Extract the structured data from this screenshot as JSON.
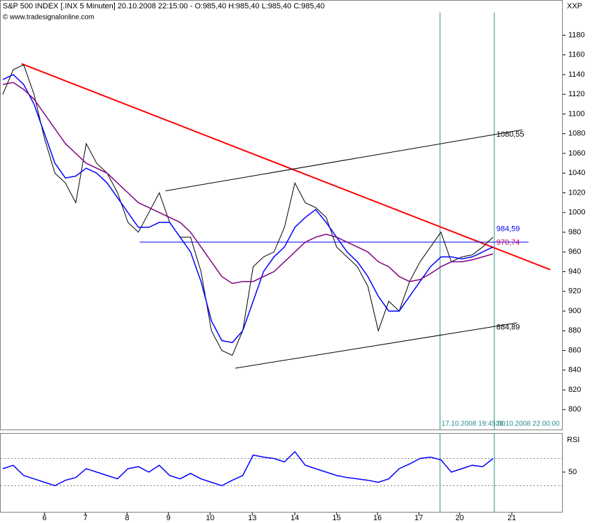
{
  "chart_data": [
    {
      "type": "line",
      "title": "S&P 500 INDEX [.INX  5 Minuten] 20.10.2008 22:15:00 - O:985,40 H:985,40 L:985,40 C:985,40",
      "subtitle": "© www.tradesignalonline.com",
      "y_label": "XXP",
      "x": [
        0,
        0.25,
        0.5,
        0.75,
        1,
        1.25,
        1.5,
        1.75,
        2,
        2.25,
        2.5,
        2.75,
        3,
        3.25,
        3.5,
        3.75,
        4,
        4.25,
        4.5,
        4.75,
        5,
        5.25,
        5.5,
        5.75,
        6,
        6.25,
        6.5,
        6.75,
        7,
        7.25,
        7.5,
        7.75,
        8,
        8.25,
        8.5,
        8.75,
        9,
        9.25,
        9.5,
        9.75,
        10,
        10.25,
        10.5,
        10.75,
        11,
        11.25,
        11.5,
        11.75
      ],
      "series": [
        {
          "color": "#000000",
          "values": [
            1120,
            1145,
            1150,
            1120,
            1075,
            1040,
            1030,
            1010,
            1070,
            1050,
            1040,
            1020,
            990,
            980,
            1000,
            1020,
            990,
            975,
            975,
            940,
            880,
            860,
            855,
            880,
            945,
            955,
            960,
            985,
            1030,
            1010,
            1005,
            995,
            965,
            955,
            945,
            925,
            880,
            910,
            900,
            930,
            950,
            965,
            980,
            950,
            955,
            957,
            965,
            975
          ]
        },
        {
          "color": "#0000ff",
          "values": [
            1135,
            1140,
            1130,
            1110,
            1080,
            1050,
            1035,
            1037,
            1045,
            1040,
            1030,
            1015,
            1000,
            985,
            985,
            990,
            990,
            975,
            960,
            930,
            890,
            870,
            868,
            880,
            910,
            940,
            955,
            965,
            985,
            995,
            1003,
            990,
            975,
            960,
            950,
            935,
            915,
            900,
            900,
            915,
            930,
            945,
            955,
            955,
            953,
            955,
            960,
            965
          ]
        },
        {
          "color": "#800080",
          "values": [
            1130,
            1132,
            1125,
            1115,
            1100,
            1085,
            1070,
            1060,
            1050,
            1045,
            1040,
            1030,
            1020,
            1010,
            1005,
            1000,
            995,
            990,
            980,
            965,
            950,
            935,
            928,
            930,
            930,
            935,
            940,
            950,
            960,
            970,
            975,
            978,
            975,
            970,
            965,
            960,
            950,
            945,
            935,
            930,
            932,
            938,
            945,
            950,
            950,
            952,
            955,
            958
          ]
        }
      ],
      "trendlines": [
        {
          "color": "#ff0000",
          "x": [
            0.45,
            13.12
          ],
          "y": [
            1151,
            942
          ]
        },
        {
          "color": "#000000",
          "x": [
            3.9,
            12.45
          ],
          "y": [
            1022,
            1084
          ]
        },
        {
          "color": "#000000",
          "x": [
            5.57,
            12.32
          ],
          "y": [
            842,
            888
          ]
        },
        {
          "color": "#0000ff",
          "x": [
            3.28,
            12.6
          ],
          "y": [
            970,
            970
          ]
        }
      ],
      "annotations": [
        {
          "text": "1080,55",
          "x": 11.83,
          "y": 1080.55,
          "color": "#000000"
        },
        {
          "text": "984,59",
          "x": 11.83,
          "y": 984.59,
          "color": "#0000ff"
        },
        {
          "text": "970,74",
          "x": 11.83,
          "y": 970.74,
          "color": "#cc0066"
        },
        {
          "text": "884,89",
          "x": 11.83,
          "y": 884.89,
          "color": "#000000"
        }
      ],
      "markers": [
        {
          "x": 10.48,
          "label": "17.10.2008 19:45:00"
        },
        {
          "x": 11.78,
          "label": "20.10.2008 22:00:00"
        }
      ],
      "xlim": [
        -0.05,
        13.42
      ],
      "ylim": [
        779,
        1203
      ],
      "yticks": [
        800,
        820,
        840,
        860,
        880,
        900,
        920,
        940,
        960,
        980,
        1000,
        1020,
        1040,
        1060,
        1080,
        1100,
        1120,
        1140,
        1160,
        1180
      ]
    },
    {
      "type": "line",
      "y_label": "RSI",
      "x": [
        0,
        0.25,
        0.5,
        0.75,
        1,
        1.25,
        1.5,
        1.75,
        2,
        2.25,
        2.5,
        2.75,
        3,
        3.25,
        3.5,
        3.75,
        4,
        4.25,
        4.5,
        4.75,
        5,
        5.25,
        5.5,
        5.75,
        6,
        6.25,
        6.5,
        6.75,
        7,
        7.25,
        7.5,
        7.75,
        8,
        8.25,
        8.5,
        8.75,
        9,
        9.25,
        9.5,
        9.75,
        10,
        10.25,
        10.5,
        10.75,
        11,
        11.25,
        11.5,
        11.75
      ],
      "series": [
        {
          "color": "#0000ff",
          "values": [
            55,
            60,
            45,
            40,
            35,
            30,
            38,
            42,
            55,
            50,
            45,
            40,
            55,
            58,
            50,
            60,
            45,
            40,
            48,
            40,
            35,
            30,
            38,
            45,
            75,
            72,
            70,
            65,
            80,
            60,
            55,
            50,
            45,
            42,
            40,
            38,
            35,
            40,
            55,
            62,
            70,
            72,
            68,
            50,
            55,
            60,
            58,
            70
          ]
        }
      ],
      "levels": [
        70,
        30
      ],
      "xlim": [
        -0.05,
        13.42
      ],
      "ylim": [
        -9.5,
        106.4
      ],
      "yticks": [
        50
      ],
      "xticks": [
        {
          "value": 1,
          "label": "6"
        },
        {
          "value": 1.98,
          "label": "7"
        },
        {
          "value": 2.98,
          "label": "8"
        },
        {
          "value": 3.97,
          "label": "9"
        },
        {
          "value": 4.97,
          "label": "10"
        },
        {
          "value": 5.98,
          "label": "13"
        },
        {
          "value": 7,
          "label": "14"
        },
        {
          "value": 8,
          "label": "15"
        },
        {
          "value": 8.98,
          "label": "16"
        },
        {
          "value": 9.97,
          "label": "17"
        },
        {
          "value": 10.95,
          "label": "20"
        },
        {
          "value": 12.2,
          "label": "21"
        }
      ]
    }
  ]
}
